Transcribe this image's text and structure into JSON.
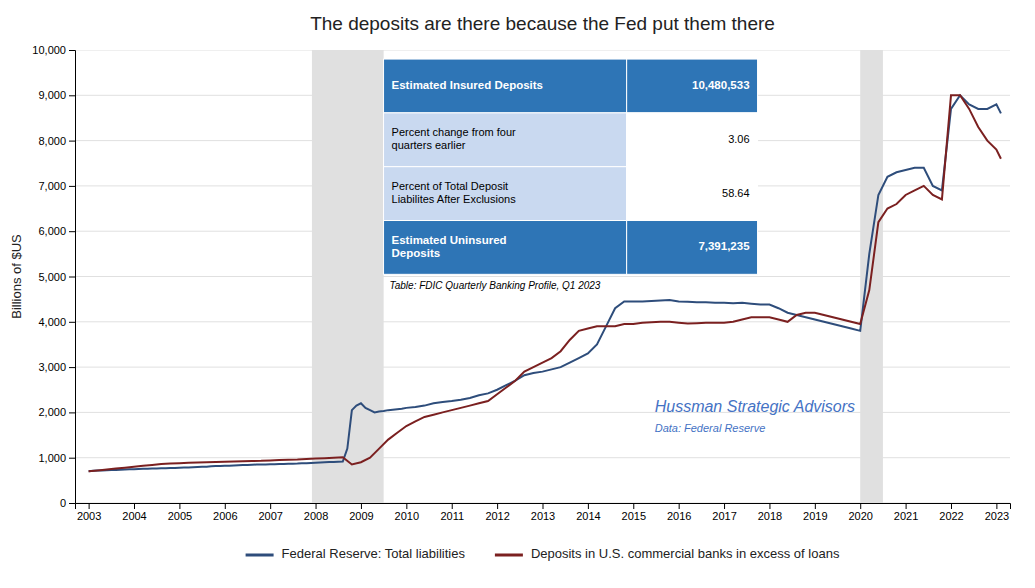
{
  "chart_data": {
    "type": "line",
    "title": "The deposits are there because the Fed put them there",
    "ylabel": "Billions of $US",
    "xlim": [
      2002.7,
      2023.3
    ],
    "ylim": [
      0,
      10000
    ],
    "xticks": [
      2003,
      2004,
      2005,
      2006,
      2007,
      2008,
      2009,
      2010,
      2011,
      2012,
      2013,
      2014,
      2015,
      2016,
      2017,
      2018,
      2019,
      2020,
      2021,
      2022,
      2023
    ],
    "yticks": [
      0,
      {
        "value": 1000,
        "label": "1,000"
      },
      {
        "value": 2000,
        "label": "2,000"
      },
      {
        "value": 3000,
        "label": "3,000"
      },
      {
        "value": 4000,
        "label": "4,000"
      },
      {
        "value": 5000,
        "label": "5,000"
      },
      {
        "value": 6000,
        "label": "6,000"
      },
      {
        "value": 7000,
        "label": "7,000"
      },
      {
        "value": 8000,
        "label": "8,000"
      },
      {
        "value": 9000,
        "label": "9,000"
      },
      {
        "value": 10000,
        "label": "10,000"
      }
    ],
    "grid": true,
    "legend": "bottom",
    "recession_shading": [
      [
        2007.92,
        2009.5
      ],
      [
        2020.0,
        2020.5
      ]
    ],
    "annotations": [
      "Hussman Strategic Advisors",
      "Data: Federal Reserve"
    ],
    "annotation_color": "#4472c4",
    "table": {
      "rows": [
        [
          "Estimated Insured Deposits",
          "10,480,533"
        ],
        [
          "Percent change from four\nquarters earlier",
          "3.06"
        ],
        [
          "Percent of Total Deposit\nLiabilites After Exclusions",
          "58.64"
        ],
        [
          "Estimated Uninsured\nDeposits",
          "7,391,235"
        ]
      ],
      "source": "Table: FDIC Quarterly Banking Profile, Q1 2023"
    },
    "series": [
      {
        "name": "Federal Reserve: Total liabilities",
        "color": "#2e4d7b",
        "x": [
          2003.0,
          2003.1,
          2003.2,
          2003.3,
          2003.4,
          2003.5,
          2003.6,
          2003.7,
          2003.8,
          2003.9,
          2004.0,
          2004.1,
          2004.2,
          2004.3,
          2004.4,
          2004.5,
          2004.6,
          2004.7,
          2004.8,
          2004.9,
          2005.0,
          2005.1,
          2005.2,
          2005.3,
          2005.4,
          2005.5,
          2005.6,
          2005.7,
          2005.8,
          2005.9,
          2006.0,
          2006.1,
          2006.2,
          2006.3,
          2006.4,
          2006.5,
          2006.6,
          2006.7,
          2006.8,
          2006.9,
          2007.0,
          2007.1,
          2007.2,
          2007.3,
          2007.4,
          2007.5,
          2007.6,
          2007.7,
          2007.8,
          2007.9,
          2008.0,
          2008.1,
          2008.2,
          2008.3,
          2008.4,
          2008.5,
          2008.6,
          2008.7,
          2008.8,
          2008.9,
          2009.0,
          2009.1,
          2009.2,
          2009.3,
          2009.4,
          2009.5,
          2009.6,
          2009.7,
          2009.8,
          2009.9,
          2010.0,
          2010.2,
          2010.4,
          2010.6,
          2010.8,
          2011.0,
          2011.2,
          2011.4,
          2011.6,
          2011.8,
          2012.0,
          2012.2,
          2012.4,
          2012.6,
          2012.8,
          2013.0,
          2013.2,
          2013.4,
          2013.6,
          2013.8,
          2014.0,
          2014.2,
          2014.4,
          2014.6,
          2014.8,
          2015.0,
          2015.2,
          2015.4,
          2015.6,
          2015.8,
          2016.0,
          2016.2,
          2016.4,
          2016.6,
          2016.8,
          2017.0,
          2017.2,
          2017.4,
          2017.6,
          2017.8,
          2018.0,
          2018.2,
          2018.4,
          2018.6,
          2018.8,
          2019.0,
          2019.2,
          2019.4,
          2019.6,
          2019.8,
          2020.0,
          2020.2,
          2020.4,
          2020.6,
          2020.8,
          2021.0,
          2021.2,
          2021.4,
          2021.6,
          2021.8,
          2022.0,
          2022.2,
          2022.4,
          2022.6,
          2022.8,
          2023.0,
          2023.1
        ],
        "values": [
          700,
          710,
          715,
          720,
          725,
          730,
          730,
          735,
          740,
          745,
          745,
          750,
          755,
          755,
          760,
          760,
          765,
          765,
          770,
          775,
          780,
          785,
          785,
          790,
          795,
          800,
          800,
          810,
          815,
          815,
          820,
          825,
          830,
          835,
          840,
          840,
          845,
          848,
          850,
          852,
          855,
          858,
          860,
          862,
          865,
          868,
          870,
          875,
          880,
          885,
          890,
          895,
          900,
          905,
          905,
          910,
          915,
          1200,
          2050,
          2150,
          2200,
          2100,
          2050,
          2000,
          2020,
          2030,
          2050,
          2060,
          2070,
          2080,
          2100,
          2120,
          2150,
          2200,
          2230,
          2250,
          2280,
          2320,
          2380,
          2420,
          2500,
          2600,
          2700,
          2820,
          2870,
          2900,
          2950,
          3000,
          3100,
          3200,
          3300,
          3500,
          3900,
          4300,
          4450,
          4450,
          4450,
          4460,
          4470,
          4480,
          4450,
          4440,
          4430,
          4430,
          4420,
          4420,
          4410,
          4420,
          4400,
          4380,
          4380,
          4300,
          4200,
          4150,
          4100,
          4050,
          4000,
          3950,
          3900,
          3850,
          3800,
          5500,
          6800,
          7200,
          7300,
          7350,
          7400,
          7400,
          7000,
          6900,
          8700,
          9000,
          8800,
          8700,
          8700,
          8800,
          8600
        ]
      },
      {
        "name": "Deposits in U.S. commercial banks in excess of loans",
        "color": "#7b2020",
        "x": [
          2003.0,
          2003.2,
          2003.4,
          2003.6,
          2003.8,
          2004.0,
          2004.2,
          2004.4,
          2004.6,
          2004.8,
          2005.0,
          2005.2,
          2005.4,
          2005.6,
          2005.8,
          2006.0,
          2006.2,
          2006.4,
          2006.6,
          2006.8,
          2007.0,
          2007.2,
          2007.4,
          2007.6,
          2007.8,
          2008.0,
          2008.2,
          2008.4,
          2008.6,
          2008.8,
          2009.0,
          2009.2,
          2009.4,
          2009.6,
          2009.8,
          2010.0,
          2010.2,
          2010.4,
          2010.6,
          2010.8,
          2011.0,
          2011.2,
          2011.4,
          2011.6,
          2011.8,
          2012.0,
          2012.2,
          2012.4,
          2012.6,
          2012.8,
          2013.0,
          2013.2,
          2013.4,
          2013.6,
          2013.8,
          2014.0,
          2014.2,
          2014.4,
          2014.6,
          2014.8,
          2015.0,
          2015.2,
          2015.4,
          2015.6,
          2015.8,
          2016.0,
          2016.2,
          2016.4,
          2016.6,
          2016.8,
          2017.0,
          2017.2,
          2017.4,
          2017.6,
          2017.8,
          2018.0,
          2018.2,
          2018.4,
          2018.6,
          2018.8,
          2019.0,
          2019.2,
          2019.4,
          2019.6,
          2019.8,
          2020.0,
          2020.2,
          2020.4,
          2020.6,
          2020.8,
          2021.0,
          2021.2,
          2021.4,
          2021.6,
          2021.8,
          2022.0,
          2022.2,
          2022.4,
          2022.6,
          2022.8,
          2023.0,
          2023.1
        ],
        "values": [
          700,
          720,
          740,
          760,
          780,
          800,
          820,
          840,
          860,
          870,
          880,
          890,
          895,
          900,
          905,
          910,
          915,
          920,
          925,
          930,
          940,
          950,
          955,
          960,
          970,
          980,
          990,
          1000,
          1010,
          850,
          900,
          1000,
          1200,
          1400,
          1550,
          1700,
          1800,
          1900,
          1950,
          2000,
          2050,
          2100,
          2150,
          2200,
          2250,
          2400,
          2550,
          2700,
          2900,
          3000,
          3100,
          3200,
          3350,
          3600,
          3800,
          3850,
          3900,
          3900,
          3900,
          3950,
          3950,
          3980,
          3990,
          4000,
          4000,
          3980,
          3960,
          3970,
          3980,
          3980,
          3980,
          4000,
          4050,
          4100,
          4100,
          4100,
          4050,
          4000,
          4150,
          4200,
          4200,
          4150,
          4100,
          4050,
          4000,
          3950,
          4700,
          6200,
          6500,
          6600,
          6800,
          6900,
          7000,
          6800,
          6700,
          9000,
          9000,
          8700,
          8300,
          8000,
          7800,
          7600
        ]
      }
    ]
  }
}
